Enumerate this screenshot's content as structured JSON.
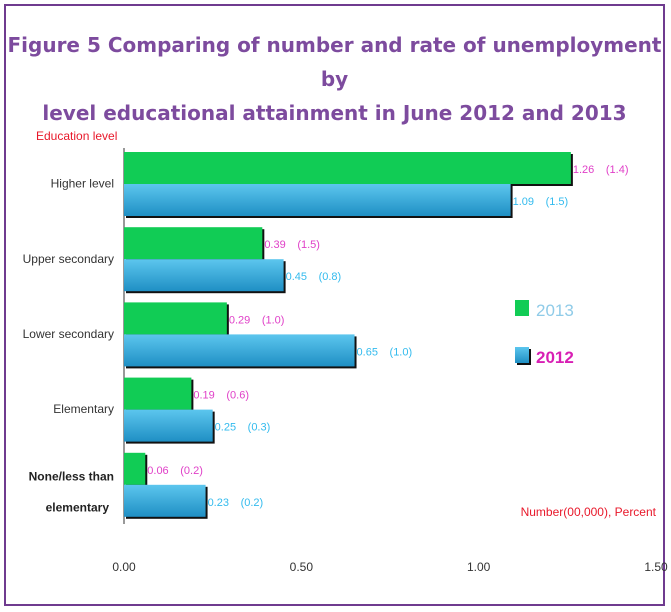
{
  "title_line1": "Figure 5 Comparing of number and rate of unemployment by",
  "title_line2": "level educational attainment in June 2012 and 2013",
  "chart_data": {
    "type": "bar",
    "orientation": "horizontal",
    "ylabel": "Education level",
    "xlabel": "Number(00,000), Percent",
    "xlim": [
      0,
      1.5
    ],
    "xticks": [
      "0.00",
      "0.50",
      "1.00",
      "1.50"
    ],
    "grid": false,
    "legend_position": "right",
    "categories": [
      [
        "Higher level"
      ],
      [
        "Upper secondary"
      ],
      [
        "Lower secondary"
      ],
      [
        "Elementary"
      ],
      [
        "None/less than",
        "elementary"
      ]
    ],
    "series": [
      {
        "name": "2013",
        "color": "#11cc55",
        "label_color": "#e040c8",
        "values": [
          1.26,
          0.39,
          0.29,
          0.19,
          0.06
        ],
        "value_labels": [
          "1.26",
          "0.39",
          "0.29",
          "0.19",
          "0.06"
        ],
        "rates": [
          "(1.4)",
          "(1.5)",
          "(1.0)",
          "(0.6)",
          "(0.2)"
        ]
      },
      {
        "name": "2012",
        "color": "#2aa4d6",
        "label_color": "#33bbee",
        "values": [
          1.09,
          0.45,
          0.65,
          0.25,
          0.23
        ],
        "value_labels": [
          "1.09",
          "0.45",
          "0.65",
          "0.25",
          "0.23"
        ],
        "rates": [
          "(1.5)",
          "(0.8)",
          "(1.0)",
          "(0.3)",
          "(0.2)"
        ]
      }
    ]
  }
}
